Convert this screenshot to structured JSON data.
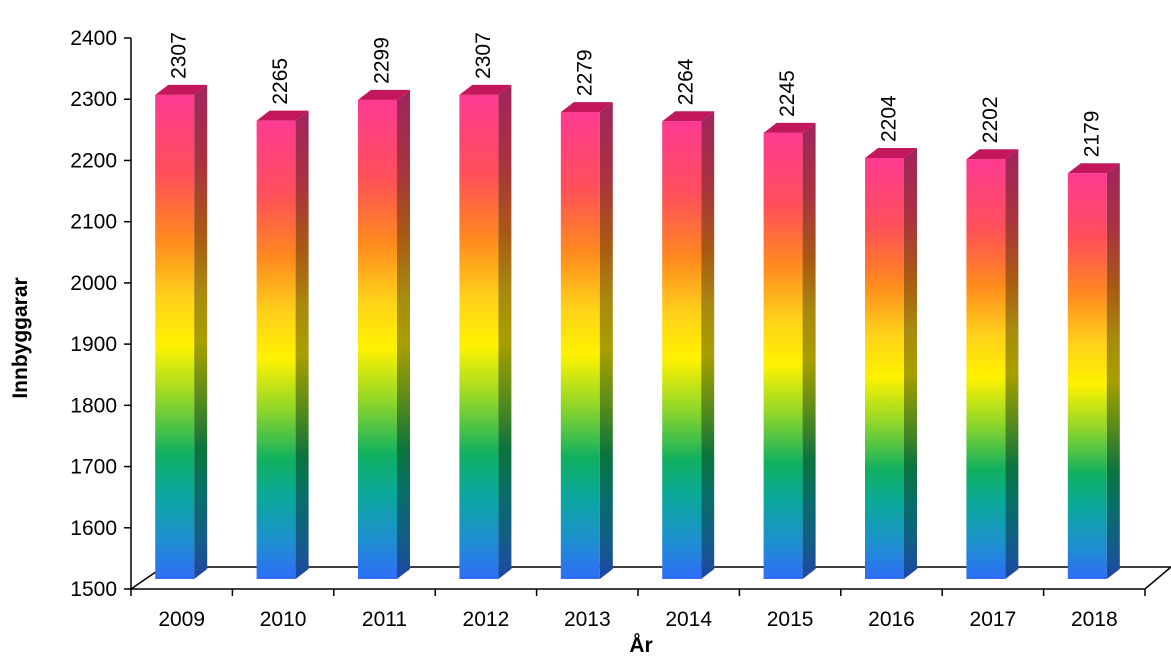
{
  "chart_data": {
    "type": "bar",
    "style": "3d-column-rainbow-gradient",
    "categories": [
      "2009",
      "2010",
      "2011",
      "2012",
      "2013",
      "2014",
      "2015",
      "2016",
      "2017",
      "2018"
    ],
    "values": [
      2307,
      2265,
      2299,
      2307,
      2279,
      2264,
      2245,
      2204,
      2202,
      2179
    ],
    "data_labels": [
      "2307",
      "2265",
      "2299",
      "2307",
      "2279",
      "2264",
      "2245",
      "2204",
      "2202",
      "2179"
    ],
    "xlabel": "År",
    "ylabel": "Innbyggarar",
    "ylim": [
      1500,
      2400
    ],
    "y_ticks": [
      "1500",
      "1600",
      "1700",
      "1800",
      "1900",
      "2000",
      "2100",
      "2200",
      "2300",
      "2400"
    ],
    "grid": false,
    "legend": "none"
  }
}
